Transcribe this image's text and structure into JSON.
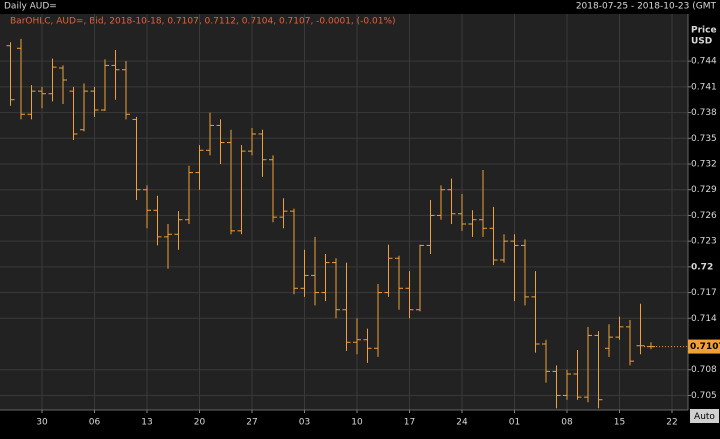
{
  "chart_data": {
    "type": "ohlc",
    "title": "Daily AUD=",
    "date_range": "2018-07-25 - 2018-10-23 (GMT",
    "legend": "BarOHLC, AUD=, Bid, 2018-10-18, 0.7107, 0.7112, 0.7104, 0.7107, -0.0001, (-0.01%)",
    "y_label": "Price",
    "y_unit": "USD",
    "button": "Auto",
    "color": "#f0a035",
    "categories": [
      null,
      null,
      null,
      "30",
      null,
      null,
      null,
      null,
      "06",
      null,
      null,
      null,
      null,
      "13",
      null,
      null,
      null,
      null,
      "20",
      null,
      null,
      null,
      null,
      "27",
      null,
      null,
      null,
      null,
      "03",
      null,
      null,
      null,
      null,
      "10",
      null,
      null,
      null,
      null,
      "17",
      null,
      null,
      null,
      null,
      "24",
      null,
      null,
      null,
      null,
      "01",
      null,
      null,
      null,
      null,
      "08",
      null,
      null,
      null,
      null,
      "15",
      null,
      null,
      null,
      null,
      "22"
    ],
    "open": [
      0.7458,
      0.7455,
      0.7378,
      0.7405,
      0.7402,
      0.7432,
      0.7405,
      0.736,
      0.7405,
      0.7383,
      0.7435,
      0.743,
      0.7372,
      0.729,
      0.7266,
      0.7235,
      0.7238,
      0.7255,
      0.731,
      0.7336,
      0.7365,
      0.7345,
      0.7242,
      0.7335,
      0.7355,
      0.7325,
      0.7258,
      0.7265,
      0.7175,
      0.719,
      0.717,
      0.7205,
      0.715,
      0.7112,
      0.7115,
      0.7105,
      0.717,
      0.721,
      0.7175,
      0.715,
      0.7225,
      0.726,
      0.729,
      0.7262,
      0.725,
      0.7255,
      0.7245,
      0.7208,
      0.723,
      0.7225,
      0.7165,
      0.711,
      0.7078,
      0.705,
      0.7075,
      0.7048,
      0.712,
      0.7105,
      0.7118,
      0.713,
      0.7108,
      0.7107,
      null,
      null
    ],
    "high": [
      0.7462,
      0.7466,
      0.7412,
      0.741,
      0.7443,
      0.7435,
      0.741,
      0.7414,
      0.741,
      0.7442,
      0.7453,
      0.744,
      0.7375,
      0.7295,
      0.7283,
      0.725,
      0.7265,
      0.7318,
      0.7342,
      0.738,
      0.7372,
      0.736,
      0.7342,
      0.7362,
      0.736,
      0.733,
      0.728,
      0.7268,
      0.722,
      0.7235,
      0.7215,
      0.721,
      0.7205,
      0.714,
      0.7128,
      0.718,
      0.7226,
      0.7213,
      0.7195,
      0.7226,
      0.7278,
      0.7295,
      0.7303,
      0.7285,
      0.7266,
      0.7313,
      0.727,
      0.7238,
      0.7238,
      0.7232,
      0.7195,
      0.7115,
      0.7085,
      0.708,
      0.7103,
      0.713,
      0.7125,
      0.7133,
      0.7142,
      0.7138,
      0.7157,
      0.7112,
      null,
      null
    ],
    "low": [
      0.7388,
      0.7372,
      0.7372,
      0.7385,
      0.7393,
      0.739,
      0.7348,
      0.7358,
      0.7375,
      0.7382,
      0.7395,
      0.7372,
      0.7278,
      0.7245,
      0.7225,
      0.7198,
      0.722,
      0.725,
      0.729,
      0.733,
      0.732,
      0.7238,
      0.7238,
      0.733,
      0.7305,
      0.7252,
      0.7245,
      0.7168,
      0.7165,
      0.7155,
      0.716,
      0.714,
      0.7102,
      0.7098,
      0.7088,
      0.7095,
      0.7165,
      0.715,
      0.714,
      0.7148,
      0.7215,
      0.7255,
      0.725,
      0.7242,
      0.7235,
      0.7235,
      0.7202,
      0.7205,
      0.716,
      0.7155,
      0.71,
      0.7065,
      0.7035,
      0.7045,
      0.7045,
      0.7042,
      0.7035,
      0.7095,
      0.7115,
      0.7085,
      0.7098,
      0.7104,
      null,
      null
    ],
    "close": [
      0.7395,
      0.7378,
      0.7405,
      0.7402,
      0.7433,
      0.7418,
      0.7355,
      0.7405,
      0.7383,
      0.7435,
      0.743,
      0.7378,
      0.729,
      0.7266,
      0.7235,
      0.7238,
      0.7255,
      0.731,
      0.7336,
      0.7365,
      0.7345,
      0.7242,
      0.7335,
      0.7355,
      0.7325,
      0.7258,
      0.7265,
      0.7175,
      0.719,
      0.717,
      0.7205,
      0.715,
      0.7112,
      0.7115,
      0.7105,
      0.717,
      0.721,
      0.7175,
      0.715,
      0.7225,
      0.726,
      0.729,
      0.7262,
      0.725,
      0.7255,
      0.7245,
      0.7208,
      0.723,
      0.7225,
      0.7165,
      0.711,
      0.7078,
      0.705,
      0.7075,
      0.7048,
      0.712,
      0.7045,
      0.7118,
      0.713,
      0.709,
      0.7108,
      0.7107,
      null,
      null
    ],
    "ylim": [
      0.7033,
      0.7495
    ],
    "yticks": [
      0.705,
      0.708,
      0.714,
      0.717,
      0.72,
      0.723,
      0.726,
      0.729,
      0.732,
      0.735,
      0.738,
      0.741,
      0.744
    ],
    "last_price": 0.7107,
    "grid": true
  }
}
